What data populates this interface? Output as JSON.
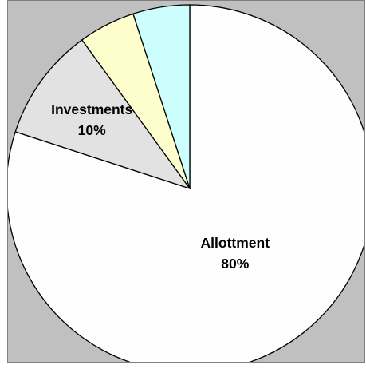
{
  "chart_data": {
    "type": "pie",
    "start_angle_deg": 0,
    "direction": "clockwise",
    "slices": [
      {
        "label": "Allottment",
        "value": 80,
        "value_label": "80%",
        "color": "#fefefe"
      },
      {
        "label": "Investments",
        "value": 10,
        "value_label": "10%",
        "color": "#e2e2e2"
      },
      {
        "label": "",
        "value": 5,
        "value_label": "",
        "color": "#fefecc"
      },
      {
        "label": "",
        "value": 5,
        "value_label": "",
        "color": "#ccfefe"
      }
    ],
    "slice_border_color": "#000000",
    "background_color": "#c0c0c0",
    "legend": "none",
    "title": ""
  }
}
